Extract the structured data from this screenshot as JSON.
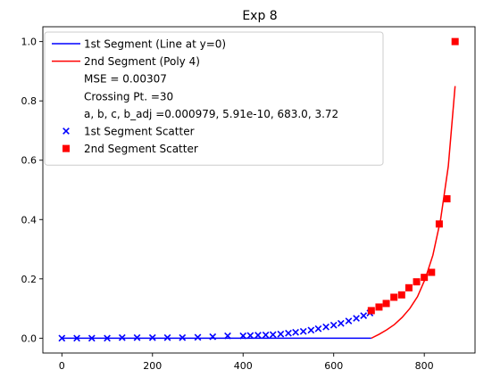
{
  "chart_data": {
    "type": "scatter",
    "title": "Exp 8",
    "xlabel": "",
    "ylabel": "",
    "xlim": [
      -42,
      912
    ],
    "ylim": [
      -0.05,
      1.05
    ],
    "xticks": [
      0,
      200,
      400,
      600,
      800
    ],
    "xtick_labels": [
      "0",
      "200",
      "400",
      "600",
      "800"
    ],
    "yticks": [
      0.0,
      0.2,
      0.4,
      0.6,
      0.8,
      1.0
    ],
    "ytick_labels": [
      "0.0",
      "0.2",
      "0.4",
      "0.6",
      "0.8",
      "1.0"
    ],
    "grid": false,
    "legend_position": "upper-left",
    "colors": {
      "segment1": "#0000ff",
      "segment2": "#ff0000"
    },
    "legend": [
      {
        "label": "1st Segment (Line at y=0)",
        "kind": "line",
        "color": "#0000ff"
      },
      {
        "label": "2nd Segment (Poly 4)",
        "kind": "line",
        "color": "#ff0000"
      },
      {
        "label": "MSE = 0.00307",
        "kind": "none"
      },
      {
        "label": "Crossing Pt. =30",
        "kind": "none"
      },
      {
        "label": "a, b, c, b_adj =0.000979, 5.91e-10, 683.0, 3.72",
        "kind": "none"
      },
      {
        "label": "1st Segment Scatter",
        "kind": "x-marker",
        "color": "#0000ff"
      },
      {
        "label": "2nd Segment Scatter",
        "kind": "square-marker",
        "color": "#ff0000"
      }
    ],
    "series": [
      {
        "name": "1st Segment (Line at y=0)",
        "type": "line",
        "x": [
          0,
          683
        ],
        "y": [
          0,
          0
        ]
      },
      {
        "name": "2nd Segment (Poly 4)",
        "type": "line",
        "x": [
          683,
          700,
          717,
          734,
          751,
          768,
          785,
          802,
          819,
          836,
          853,
          868
        ],
        "y": [
          0.0,
          0.013,
          0.028,
          0.046,
          0.07,
          0.1,
          0.14,
          0.2,
          0.28,
          0.4,
          0.58,
          0.85
        ]
      },
      {
        "name": "1st Segment Scatter",
        "type": "scatter",
        "marker": "x",
        "x": [
          0,
          33,
          66,
          100,
          133,
          166,
          200,
          233,
          266,
          300,
          333,
          366,
          400,
          416,
          433,
          450,
          466,
          483,
          500,
          516,
          533,
          550,
          566,
          583,
          600,
          616,
          633,
          650,
          666,
          680
        ],
        "y": [
          0.0,
          0.0,
          0.0,
          0.0,
          0.002,
          0.002,
          0.002,
          0.002,
          0.002,
          0.003,
          0.005,
          0.008,
          0.008,
          0.009,
          0.01,
          0.011,
          0.012,
          0.014,
          0.017,
          0.02,
          0.023,
          0.027,
          0.032,
          0.038,
          0.044,
          0.05,
          0.058,
          0.067,
          0.076,
          0.085
        ]
      },
      {
        "name": "2nd Segment Scatter",
        "type": "scatter",
        "marker": "square",
        "x": [
          683,
          700,
          716,
          733,
          750,
          766,
          783,
          800,
          816,
          833,
          850,
          868
        ],
        "y": [
          0.093,
          0.105,
          0.117,
          0.138,
          0.146,
          0.17,
          0.19,
          0.205,
          0.222,
          0.385,
          0.47,
          1.0
        ]
      }
    ]
  }
}
